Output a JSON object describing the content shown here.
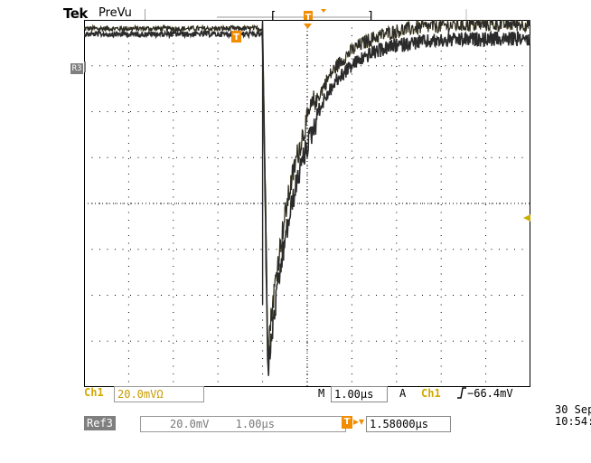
{
  "header": {
    "brand": "Tek",
    "status": "PreVu",
    "trigger_marker_label": "T"
  },
  "display": {
    "ref_marker": "R3",
    "trigger_marker": "T",
    "graticule": {
      "divisions_x": 10,
      "divisions_y": 8
    },
    "colors": {
      "trace": "#2b2b2b",
      "trace_highlight": "#c8b000",
      "trigger_orange": "#f28c00",
      "channel_yellow": "#d4a800",
      "grid": "#000000"
    },
    "waveform": {
      "units_x": "µs",
      "units_y": "div",
      "x_range": [
        -5.0,
        5.0
      ],
      "y_range": [
        -4,
        4
      ],
      "baseline_div": 3.75,
      "step_time": -1.0,
      "min_time": -0.88,
      "min_div": -3.4,
      "recovered_div": 3.75
    }
  },
  "bottom": {
    "ch1_label": "Ch1",
    "ch1_scale": "20.0mVΩ",
    "m_label": "M",
    "m_value": "1.00µs",
    "a_label": "A",
    "trigger_source": "Ch1",
    "trigger_slope_icon": "rising-edge-icon",
    "trigger_level": "−66.4mV",
    "date": "30 Sep",
    "time": "10:54:",
    "ref_label": "Ref3",
    "ref_scale": "20.0mV",
    "ref_time": "1.00µs",
    "tpos_icon": "T",
    "tpos_value": "1.58000µs"
  }
}
